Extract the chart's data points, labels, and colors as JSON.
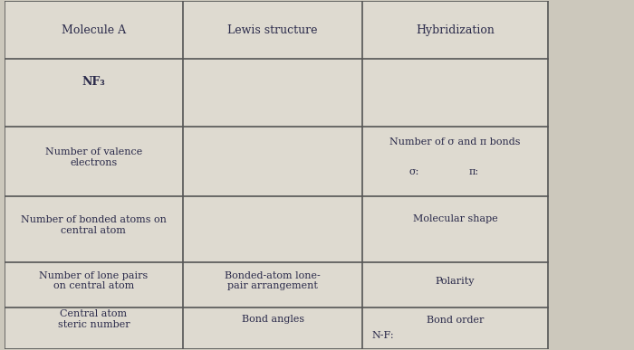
{
  "background_color": "#ccc8bc",
  "cell_bg_light": "#dedad0",
  "line_color": "#555555",
  "text_color": "#2a2a4a",
  "title_fontsize": 9,
  "body_fontsize": 8,
  "figsize": [
    7.0,
    3.87
  ],
  "col_boundaries": [
    0.0,
    0.285,
    0.57,
    0.865
  ],
  "row_boundaries": [
    1.0,
    0.835,
    0.64,
    0.44,
    0.25,
    0.12,
    0.0
  ],
  "headers": [
    "Molecule A",
    "Lewis structure",
    "Hybridization"
  ],
  "row1_col0": "NF₃",
  "row2_col0": "Number of valence\nelectrons",
  "row2_col2_line1": "Number of σ and π bonds",
  "row2_col2_sigma": "σ:",
  "row2_col2_pi": "π:",
  "row3_col0": "Number of bonded atoms on\ncentral atom",
  "row3_col2": "Molecular shape",
  "row4_col0": "Number of lone pairs\non central atom",
  "row4_col1": "Bonded-atom lone-\npair arrangement",
  "row4_col2": "Polarity",
  "row5_col0": "Central atom\nsteric number",
  "row5_col1": "Bond angles",
  "row5_col2_top": "Bond order",
  "row5_col2_bot": "N-F:"
}
